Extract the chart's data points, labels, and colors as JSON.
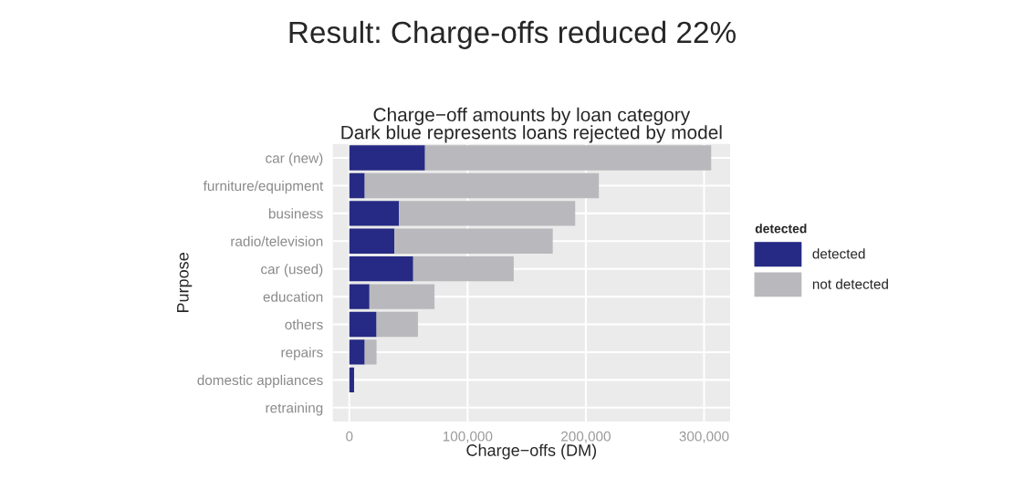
{
  "chart_data": {
    "type": "bar",
    "orientation": "horizontal",
    "stacked": true,
    "title": "Result: Charge-offs reduced 22%",
    "subtitle": "Charge−off amounts by loan category\nDark blue represents loans rejected by model",
    "xlabel": "Charge−offs (DM)",
    "ylabel": "Purpose",
    "legend_title": "detected",
    "categories": [
      "car (new)",
      "furniture/equipment",
      "business",
      "radio/television",
      "car (used)",
      "education",
      "others",
      "repairs",
      "domestic appliances",
      "retraining"
    ],
    "series": [
      {
        "name": "detected",
        "color": "#262a84",
        "values": [
          64000,
          13000,
          42000,
          38000,
          54000,
          17000,
          23000,
          13000,
          4000,
          null
        ]
      },
      {
        "name": "not detected",
        "color": "#b9b9bd",
        "values": [
          242000,
          198000,
          149000,
          134000,
          85000,
          55000,
          35000,
          10000,
          null,
          null
        ]
      }
    ],
    "xlim": [
      -14000,
      322000
    ],
    "xticks": [
      {
        "value": 0,
        "label": "0"
      },
      {
        "value": 100000,
        "label": "100,000"
      },
      {
        "value": 200000,
        "label": "200,000"
      },
      {
        "value": 300000,
        "label": "300,000"
      }
    ],
    "grid": true,
    "legend": "right"
  }
}
